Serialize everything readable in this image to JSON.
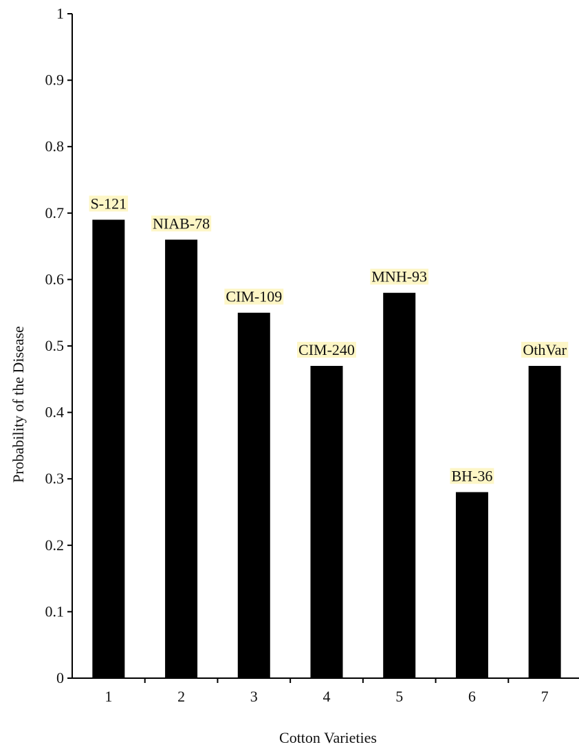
{
  "chart_data": {
    "type": "bar",
    "title": "",
    "xlabel": "Cotton Varieties",
    "ylabel": "Probability of the Disease",
    "categories": [
      "1",
      "2",
      "3",
      "4",
      "5",
      "6",
      "7"
    ],
    "values": [
      0.69,
      0.66,
      0.55,
      0.47,
      0.58,
      0.28,
      0.47
    ],
    "data_labels": [
      "S-121",
      "NIAB-78",
      "CIM-109",
      "CIM-240",
      "MNH-93",
      "BH-36",
      "OthVar"
    ],
    "yticks": [
      "0",
      "0.1",
      "0.2",
      "0.3",
      "0.4",
      "0.5",
      "0.6",
      "0.7",
      "0.8",
      "0.9",
      "1"
    ],
    "ylim": [
      0,
      1
    ],
    "grid": false,
    "legend": "none",
    "colors": {
      "bar": "#000000",
      "label_highlight": "#fdf6c6",
      "axis": "#000000"
    }
  }
}
